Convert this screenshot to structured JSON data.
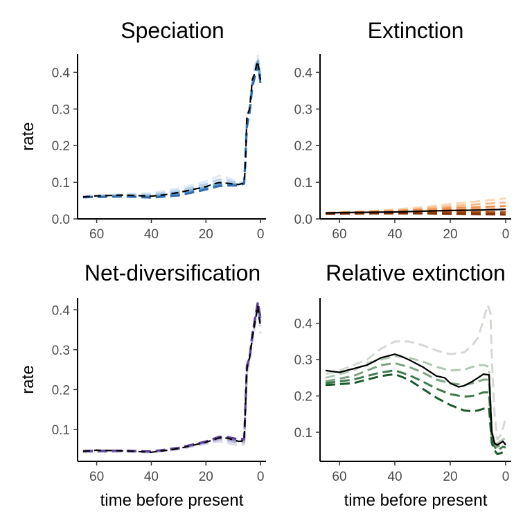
{
  "chart_data": [
    {
      "type": "line",
      "title": "Speciation",
      "xlabel": "",
      "ylabel": "rate",
      "xlim": [
        67,
        -2
      ],
      "ylim": [
        0,
        0.45
      ],
      "xticks": [
        60,
        40,
        20,
        0
      ],
      "yticks": [
        0.0,
        0.1,
        0.2,
        0.3,
        0.4
      ],
      "ytick_labels": [
        "0.0",
        "0.1",
        "0.2",
        "0.3",
        "0.4"
      ],
      "mean": {
        "color": "#000000",
        "dashed": true,
        "x": [
          65,
          60,
          50,
          40,
          35,
          30,
          25,
          20,
          17,
          15,
          12,
          8,
          6,
          5.5,
          5,
          4.5,
          4,
          3.5,
          3,
          2,
          1.5,
          1,
          0.5,
          0
        ],
        "y": [
          0.06,
          0.063,
          0.065,
          0.062,
          0.066,
          0.072,
          0.08,
          0.088,
          0.096,
          0.099,
          0.097,
          0.094,
          0.098,
          0.15,
          0.28,
          0.29,
          0.3,
          0.34,
          0.38,
          0.4,
          0.42,
          0.43,
          0.4,
          0.38
        ]
      },
      "series": [
        {
          "color": "#dbe8f5",
          "x": [
            65,
            50,
            40,
            30,
            20,
            15,
            12,
            8,
            6,
            5,
            4,
            3,
            2,
            1,
            0
          ],
          "y": [
            0.062,
            0.068,
            0.07,
            0.083,
            0.102,
            0.118,
            0.112,
            0.1,
            0.1,
            0.27,
            0.31,
            0.38,
            0.42,
            0.445,
            0.4
          ]
        },
        {
          "color": "#b5d2ea",
          "x": [
            65,
            50,
            40,
            30,
            20,
            15,
            12,
            8,
            6,
            5,
            4,
            3,
            2,
            1,
            0
          ],
          "y": [
            0.061,
            0.066,
            0.066,
            0.077,
            0.095,
            0.108,
            0.105,
            0.097,
            0.099,
            0.27,
            0.3,
            0.37,
            0.41,
            0.44,
            0.39
          ]
        },
        {
          "color": "#8cb9dd",
          "x": [
            65,
            50,
            40,
            30,
            20,
            15,
            12,
            8,
            6,
            5,
            4,
            3,
            2,
            1,
            0
          ],
          "y": [
            0.06,
            0.064,
            0.063,
            0.072,
            0.088,
            0.1,
            0.098,
            0.094,
            0.098,
            0.26,
            0.3,
            0.37,
            0.4,
            0.43,
            0.38
          ]
        },
        {
          "color": "#5d97cb",
          "x": [
            65,
            50,
            40,
            30,
            20,
            15,
            12,
            8,
            6,
            5,
            4,
            3,
            2,
            1,
            0
          ],
          "y": [
            0.059,
            0.062,
            0.06,
            0.068,
            0.084,
            0.094,
            0.094,
            0.092,
            0.097,
            0.26,
            0.29,
            0.36,
            0.4,
            0.43,
            0.38
          ]
        },
        {
          "color": "#2f6dae",
          "x": [
            65,
            50,
            40,
            30,
            20,
            15,
            12,
            8,
            6,
            5,
            4,
            3,
            2,
            1,
            0
          ],
          "y": [
            0.059,
            0.061,
            0.058,
            0.064,
            0.08,
            0.09,
            0.091,
            0.091,
            0.096,
            0.25,
            0.29,
            0.36,
            0.39,
            0.42,
            0.37
          ]
        }
      ]
    },
    {
      "type": "line",
      "title": "Extinction",
      "xlabel": "",
      "ylabel": "",
      "xlim": [
        67,
        -2
      ],
      "ylim": [
        0,
        0.45
      ],
      "xticks": [
        60,
        40,
        20,
        0
      ],
      "yticks": [
        0.0,
        0.1,
        0.2,
        0.3,
        0.4
      ],
      "ytick_labels": [
        "0.0",
        "0.1",
        "0.2",
        "0.3",
        "0.4"
      ],
      "mean": {
        "color": "#000000",
        "dashed": false,
        "x": [
          65,
          60,
          50,
          40,
          30,
          20,
          10,
          5,
          0
        ],
        "y": [
          0.016,
          0.017,
          0.018,
          0.019,
          0.021,
          0.023,
          0.024,
          0.025,
          0.026
        ]
      },
      "series": [
        {
          "color": "#fbd6b6",
          "x": [
            65,
            50,
            40,
            30,
            20,
            10,
            0
          ],
          "y": [
            0.016,
            0.021,
            0.026,
            0.032,
            0.04,
            0.048,
            0.056
          ]
        },
        {
          "color": "#f8b987",
          "x": [
            65,
            50,
            40,
            30,
            20,
            10,
            0
          ],
          "y": [
            0.016,
            0.02,
            0.023,
            0.028,
            0.034,
            0.04,
            0.045
          ]
        },
        {
          "color": "#f0924f",
          "x": [
            65,
            50,
            40,
            30,
            20,
            10,
            0
          ],
          "y": [
            0.016,
            0.019,
            0.021,
            0.025,
            0.029,
            0.032,
            0.035
          ]
        },
        {
          "color": "#dd6a23",
          "x": [
            65,
            50,
            40,
            30,
            20,
            10,
            0
          ],
          "y": [
            0.015,
            0.017,
            0.019,
            0.021,
            0.023,
            0.025,
            0.026
          ]
        },
        {
          "color": "#b04c12",
          "x": [
            65,
            50,
            40,
            30,
            20,
            10,
            0
          ],
          "y": [
            0.015,
            0.016,
            0.017,
            0.018,
            0.018,
            0.018,
            0.018
          ]
        },
        {
          "color": "#7f2f04",
          "x": [
            65,
            50,
            40,
            30,
            20,
            10,
            0
          ],
          "y": [
            0.014,
            0.015,
            0.015,
            0.015,
            0.014,
            0.013,
            0.012
          ]
        }
      ]
    },
    {
      "type": "line",
      "title": "Net-diversification",
      "xlabel": "time before present",
      "ylabel": "rate",
      "xlim": [
        67,
        -2
      ],
      "ylim": [
        0.02,
        0.43
      ],
      "xticks": [
        60,
        40,
        20,
        0
      ],
      "yticks": [
        0.1,
        0.2,
        0.3,
        0.4
      ],
      "ytick_labels": [
        "0.1",
        "0.2",
        "0.3",
        "0.4"
      ],
      "mean": {
        "color": "#000000",
        "dashed": true,
        "x": [
          65,
          60,
          50,
          40,
          35,
          30,
          25,
          20,
          15,
          12,
          8,
          6,
          5,
          4.5,
          4,
          3,
          2,
          1,
          0.5,
          0
        ],
        "y": [
          0.045,
          0.048,
          0.046,
          0.043,
          0.047,
          0.052,
          0.06,
          0.068,
          0.079,
          0.078,
          0.07,
          0.072,
          0.25,
          0.27,
          0.28,
          0.33,
          0.37,
          0.41,
          0.38,
          0.36
        ]
      },
      "series": [
        {
          "color": "#dcdaeb",
          "x": [
            65,
            50,
            40,
            30,
            20,
            15,
            12,
            8,
            6,
            5,
            4,
            3,
            2,
            1,
            0
          ],
          "y": [
            0.043,
            0.044,
            0.042,
            0.05,
            0.064,
            0.07,
            0.066,
            0.06,
            0.062,
            0.24,
            0.27,
            0.32,
            0.36,
            0.4,
            0.34
          ]
        },
        {
          "color": "#bcbddc",
          "x": [
            65,
            50,
            40,
            30,
            20,
            15,
            12,
            8,
            6,
            5,
            4,
            3,
            2,
            1,
            0
          ],
          "y": [
            0.044,
            0.045,
            0.043,
            0.051,
            0.066,
            0.075,
            0.072,
            0.066,
            0.068,
            0.25,
            0.27,
            0.33,
            0.37,
            0.41,
            0.36
          ]
        },
        {
          "color": "#9e9ac8",
          "x": [
            65,
            50,
            40,
            30,
            20,
            15,
            12,
            8,
            6,
            5,
            4,
            3,
            2,
            1,
            0
          ],
          "y": [
            0.045,
            0.046,
            0.044,
            0.052,
            0.068,
            0.078,
            0.076,
            0.07,
            0.072,
            0.25,
            0.28,
            0.33,
            0.37,
            0.41,
            0.37
          ]
        },
        {
          "color": "#7f73b5",
          "x": [
            65,
            50,
            40,
            30,
            20,
            15,
            12,
            8,
            6,
            5,
            4,
            3,
            2,
            1,
            0
          ],
          "y": [
            0.046,
            0.047,
            0.044,
            0.053,
            0.069,
            0.08,
            0.079,
            0.073,
            0.075,
            0.26,
            0.28,
            0.34,
            0.38,
            0.415,
            0.38
          ]
        },
        {
          "color": "#5e3e9c",
          "x": [
            65,
            50,
            40,
            30,
            20,
            15,
            12,
            8,
            6,
            5,
            4,
            3,
            2,
            1,
            0
          ],
          "y": [
            0.046,
            0.047,
            0.045,
            0.054,
            0.07,
            0.082,
            0.081,
            0.075,
            0.077,
            0.26,
            0.28,
            0.34,
            0.38,
            0.42,
            0.38
          ]
        }
      ]
    },
    {
      "type": "line",
      "title": "Relative extinction",
      "xlabel": "time before present",
      "ylabel": "",
      "xlim": [
        67,
        -2
      ],
      "ylim": [
        0.02,
        0.47
      ],
      "xticks": [
        60,
        40,
        20,
        0
      ],
      "yticks": [
        0.1,
        0.2,
        0.3,
        0.4
      ],
      "ytick_labels": [
        "0.1",
        "0.2",
        "0.3",
        "0.4"
      ],
      "mean": {
        "color": "#000000",
        "dashed": false,
        "x": [
          65,
          60,
          55,
          50,
          45,
          40,
          38,
          35,
          30,
          25,
          22,
          20,
          17,
          15,
          12,
          10,
          8,
          6,
          5,
          4,
          3,
          2,
          1,
          0
        ],
        "y": [
          0.27,
          0.265,
          0.275,
          0.285,
          0.305,
          0.315,
          0.31,
          0.3,
          0.28,
          0.255,
          0.25,
          0.235,
          0.225,
          0.228,
          0.24,
          0.25,
          0.26,
          0.258,
          0.1,
          0.07,
          0.065,
          0.07,
          0.075,
          0.065
        ]
      },
      "series": [
        {
          "color": "#d5d9d3",
          "x": [
            65,
            60,
            50,
            45,
            40,
            35,
            30,
            25,
            20,
            15,
            12,
            10,
            8,
            6.5,
            5.5,
            5,
            4,
            3,
            2,
            1,
            0
          ],
          "y": [
            0.26,
            0.27,
            0.3,
            0.33,
            0.35,
            0.35,
            0.34,
            0.325,
            0.315,
            0.32,
            0.34,
            0.36,
            0.41,
            0.45,
            0.43,
            0.3,
            0.15,
            0.08,
            0.09,
            0.11,
            0.14
          ]
        },
        {
          "color": "#b3c8b4",
          "x": [
            65,
            55,
            50,
            45,
            40,
            35,
            30,
            25,
            20,
            15,
            12,
            10,
            8,
            6,
            5,
            4,
            3,
            2,
            1,
            0
          ],
          "y": [
            0.25,
            0.27,
            0.29,
            0.3,
            0.31,
            0.305,
            0.295,
            0.28,
            0.27,
            0.272,
            0.28,
            0.285,
            0.285,
            0.28,
            0.1,
            0.08,
            0.07,
            0.075,
            0.08,
            0.085
          ]
        },
        {
          "color": "#7ea183",
          "x": [
            65,
            55,
            50,
            45,
            40,
            35,
            30,
            25,
            20,
            15,
            12,
            10,
            8,
            6,
            5,
            4,
            3,
            2,
            1,
            0
          ],
          "y": [
            0.24,
            0.255,
            0.27,
            0.285,
            0.29,
            0.28,
            0.265,
            0.245,
            0.235,
            0.23,
            0.235,
            0.24,
            0.245,
            0.245,
            0.09,
            0.07,
            0.06,
            0.065,
            0.07,
            0.07
          ]
        },
        {
          "color": "#3f7a4d",
          "x": [
            65,
            55,
            50,
            45,
            40,
            35,
            30,
            25,
            20,
            15,
            12,
            10,
            8,
            6,
            5,
            4,
            3,
            2,
            1,
            0
          ],
          "y": [
            0.235,
            0.245,
            0.255,
            0.265,
            0.27,
            0.258,
            0.24,
            0.22,
            0.205,
            0.198,
            0.2,
            0.205,
            0.21,
            0.21,
            0.08,
            0.06,
            0.05,
            0.055,
            0.06,
            0.058
          ]
        },
        {
          "color": "#1a5a2c",
          "x": [
            65,
            55,
            50,
            45,
            40,
            35,
            30,
            25,
            20,
            15,
            12,
            10,
            8,
            6,
            5,
            4,
            3,
            2,
            1,
            0
          ],
          "y": [
            0.23,
            0.235,
            0.245,
            0.255,
            0.26,
            0.245,
            0.22,
            0.195,
            0.175,
            0.16,
            0.158,
            0.16,
            0.165,
            0.168,
            0.07,
            0.05,
            0.04,
            0.042,
            0.045,
            0.045
          ]
        }
      ]
    }
  ]
}
